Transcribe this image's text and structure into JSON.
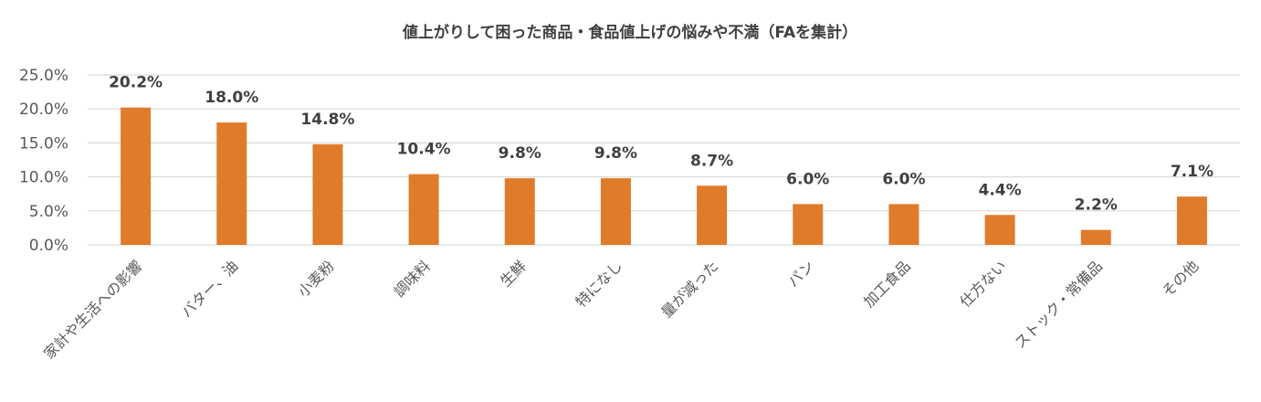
{
  "chart_data": {
    "type": "bar",
    "title": "値上がりして困った商品・食品値上げの悩みや不満（FAを集計）",
    "xlabel": "",
    "ylabel": "",
    "categories": [
      "家計や生活への影響",
      "バター、油",
      "小麦粉",
      "調味料",
      "生鮮",
      "特になし",
      "量が減った",
      "パン",
      "加工食品",
      "仕方ない",
      "ストック・常備品",
      "その他"
    ],
    "values": [
      20.2,
      18.0,
      14.8,
      10.4,
      9.8,
      9.8,
      8.7,
      6.0,
      6.0,
      4.4,
      2.2,
      7.1
    ],
    "value_labels": [
      "20.2%",
      "18.0%",
      "14.8%",
      "10.4%",
      "9.8%",
      "9.8%",
      "8.7%",
      "6.0%",
      "6.0%",
      "4.4%",
      "2.2%",
      "7.1%"
    ],
    "yticks": [
      0,
      5,
      10,
      15,
      20,
      25
    ],
    "ytick_labels": [
      "0.0%",
      "5.0%",
      "10.0%",
      "15.0%",
      "20.0%",
      "25.0%"
    ],
    "ylim": [
      0,
      25
    ],
    "grid": true,
    "legend": "none",
    "bar_color": "#E07B29",
    "grid_color": "#D9D9D9"
  }
}
